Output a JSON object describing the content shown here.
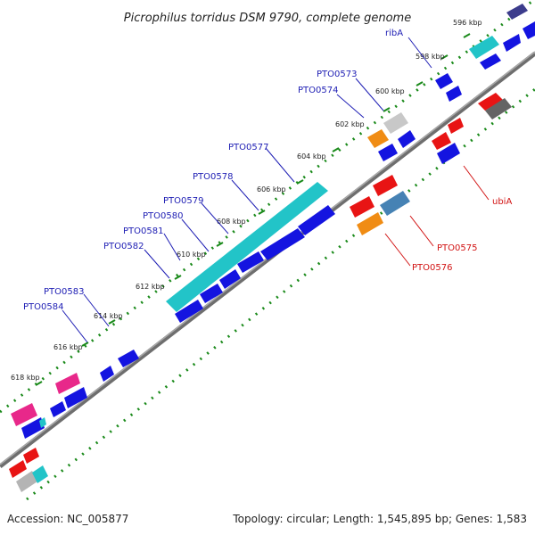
{
  "title": "Picrophilus torridus DSM 9790, complete genome",
  "accession": "Accession: NC_005877",
  "topology": "Topology: circular; Length: 1,545,895 bp; Genes: 1,583",
  "colors": {
    "backbone": "#6e6e6e",
    "scale_dots": "#1a8a1a",
    "cds_blue": "#1414e0",
    "cyan": "#22c4c8",
    "magenta": "#e8288a",
    "red": "#e81414",
    "orange": "#f08c14",
    "steelblue": "#4682b4",
    "gray": "#b4b4b4",
    "darkgray": "#646464",
    "navy": "#3c3c8c",
    "label_blue": "#1e1eb4",
    "label_red": "#d21414"
  },
  "scale_ticks": [
    "596 kbp",
    "598 kbp",
    "600 kbp",
    "602 kbp",
    "604 kbp",
    "606 kbp",
    "608 kbp",
    "610 kbp",
    "612 kbp",
    "614 kbp",
    "616 kbp",
    "618 kbp"
  ],
  "labels_outer": [
    "ribA",
    "PTO0573",
    "PTO0574",
    "PTO0577",
    "PTO0578",
    "PTO0579",
    "PTO0580",
    "PTO0581",
    "PTO0582",
    "PTO0583",
    "PTO0584"
  ],
  "labels_inner": [
    "ubiA",
    "PTO0575",
    "PTO0576"
  ]
}
